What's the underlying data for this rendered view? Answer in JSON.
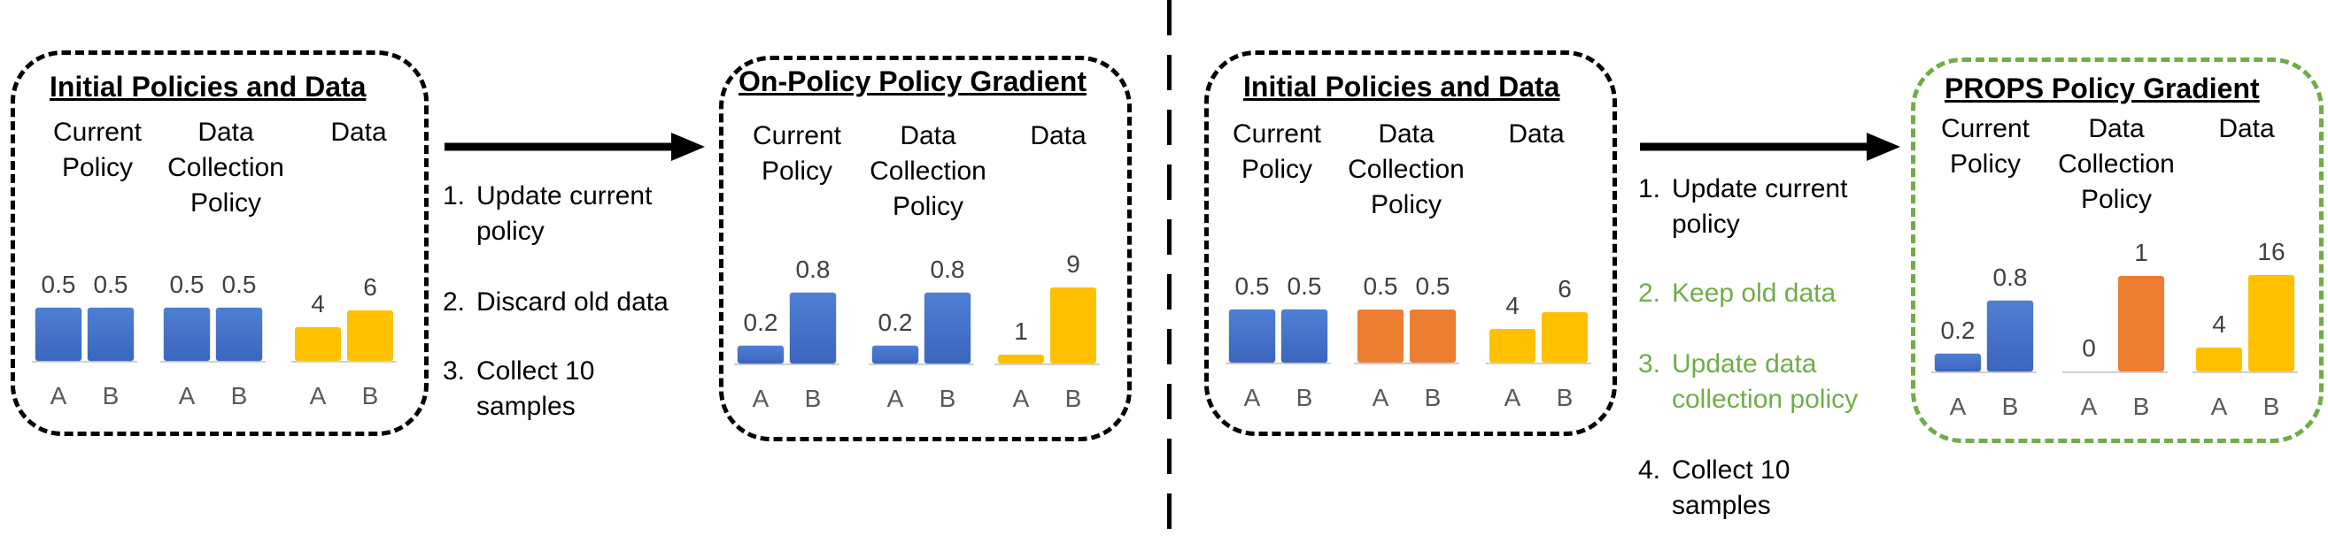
{
  "headers": {
    "current_policy": "Current\nPolicy",
    "data_collection_policy": "Data\nCollection\nPolicy",
    "data": "Data"
  },
  "categories": [
    "A",
    "B"
  ],
  "colors": {
    "blue": "#4472c4",
    "orange": "#ed7d31",
    "yellow": "#ffc000",
    "green": "#70ad47",
    "black": "#000000"
  },
  "panels": [
    {
      "id": "left-initial",
      "title": "Initial Policies and Data",
      "current_policy": {
        "color": "blue",
        "values": [
          0.5,
          0.5
        ],
        "labels": [
          "0.5",
          "0.5"
        ]
      },
      "data_collection_policy": {
        "color": "blue",
        "values": [
          0.5,
          0.5
        ],
        "labels": [
          "0.5",
          "0.5"
        ]
      },
      "data": {
        "color": "yellow",
        "values": [
          4,
          6
        ],
        "labels": [
          "4",
          "6"
        ]
      }
    },
    {
      "id": "on-policy",
      "title": "On-Policy Policy Gradient",
      "current_policy": {
        "color": "blue",
        "values": [
          0.2,
          0.8
        ],
        "labels": [
          "0.2",
          "0.8"
        ]
      },
      "data_collection_policy": {
        "color": "blue",
        "values": [
          0.2,
          0.8
        ],
        "labels": [
          "0.2",
          "0.8"
        ]
      },
      "data": {
        "color": "yellow",
        "values": [
          1,
          9
        ],
        "labels": [
          "1",
          "9"
        ]
      }
    },
    {
      "id": "right-initial",
      "title": "Initial Policies and Data",
      "current_policy": {
        "color": "blue",
        "values": [
          0.5,
          0.5
        ],
        "labels": [
          "0.5",
          "0.5"
        ]
      },
      "data_collection_policy": {
        "color": "orange",
        "values": [
          0.5,
          0.5
        ],
        "labels": [
          "0.5",
          "0.5"
        ]
      },
      "data": {
        "color": "yellow",
        "values": [
          4,
          6
        ],
        "labels": [
          "4",
          "6"
        ]
      }
    },
    {
      "id": "props",
      "title": "PROPS Policy Gradient",
      "current_policy": {
        "color": "blue",
        "values": [
          0.2,
          0.8
        ],
        "labels": [
          "0.2",
          "0.8"
        ]
      },
      "data_collection_policy": {
        "color": "orange",
        "values": [
          0,
          1
        ],
        "labels": [
          "0",
          "1"
        ]
      },
      "data": {
        "color": "yellow",
        "values": [
          4,
          16
        ],
        "labels": [
          "4",
          "16"
        ]
      }
    }
  ],
  "left_steps": [
    {
      "num": "1.",
      "text": "Update current\npolicy",
      "color": "black"
    },
    {
      "num": "2.",
      "text": "Discard old data",
      "color": "black"
    },
    {
      "num": "3.",
      "text": "Collect 10\nsamples",
      "color": "black"
    }
  ],
  "right_steps": [
    {
      "num": "1.",
      "text": "Update current\npolicy",
      "color": "black"
    },
    {
      "num": "2.",
      "text": "Keep old data",
      "color": "green"
    },
    {
      "num": "3.",
      "text": "Update data\ncollection policy",
      "color": "green"
    },
    {
      "num": "4.",
      "text": "Collect 10\nsamples",
      "color": "black"
    }
  ]
}
